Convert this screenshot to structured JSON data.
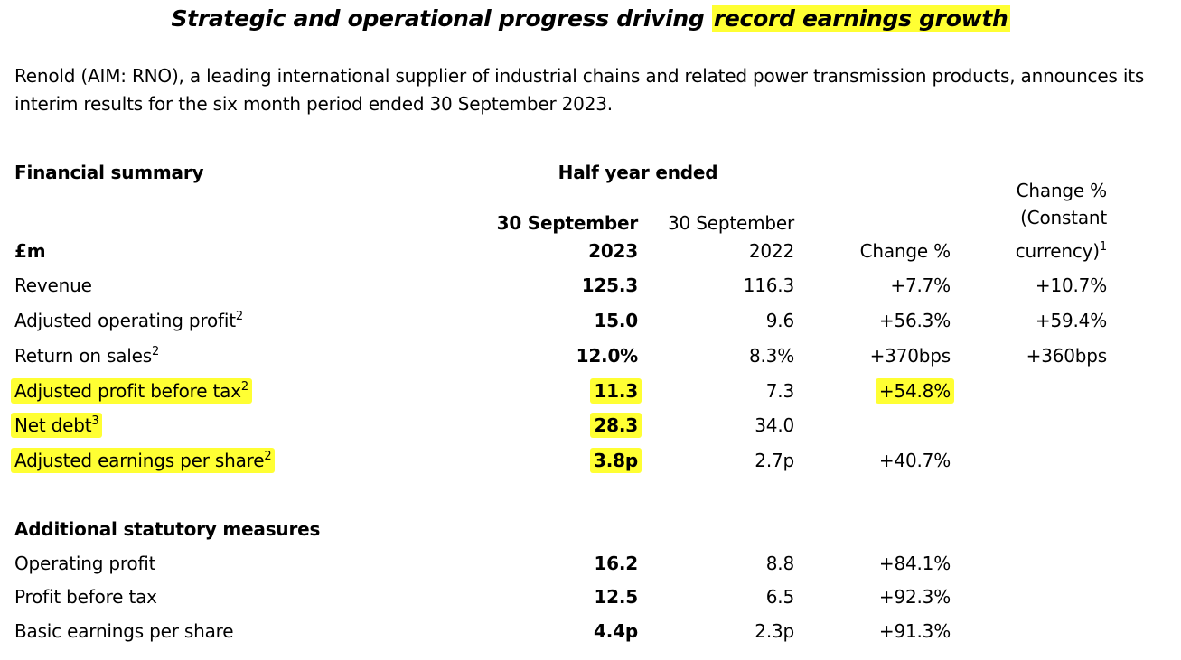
{
  "headline": {
    "part1": "Strategic and operational progress driving ",
    "part2_highlighted": "record earnings growth"
  },
  "intro": "Renold (AIM: RNO), a leading international supplier of industrial chains and related power transmission products, announces its interim results for the six month period ended 30 September 2023.",
  "table": {
    "section_title": "Financial summary",
    "period_header": "Half year ended",
    "unit_label": "£m",
    "col_current_line1": "30 September",
    "col_current_line2": "2023",
    "col_prior_line1": "30 September",
    "col_prior_line2": "2022",
    "col_change": "Change %",
    "col_cc_line1": "Change %",
    "col_cc_line2": "(Constant",
    "col_cc_line3": "currency)",
    "col_cc_sup": "1",
    "rows": [
      {
        "label": "Revenue",
        "sup": "",
        "current": "125.3",
        "prior": "116.3",
        "change": "+7.7%",
        "cc": "+10.7%"
      },
      {
        "label": "Adjusted operating profit",
        "sup": "2",
        "current": "15.0",
        "prior": "9.6",
        "change": "+56.3%",
        "cc": "+59.4%"
      },
      {
        "label": "Return on sales",
        "sup": "2",
        "current": "12.0%",
        "prior": "8.3%",
        "change": "+370bps",
        "cc": "+360bps"
      },
      {
        "label": "Adjusted profit before tax",
        "sup": "2",
        "current": "11.3",
        "prior": "7.3",
        "change": "+54.8%",
        "cc": ""
      },
      {
        "label": "Net debt",
        "sup": "3",
        "current": "28.3",
        "prior": "34.0",
        "change": "",
        "cc": ""
      },
      {
        "label": "Adjusted earnings per share",
        "sup": "2",
        "current": "3.8p",
        "prior": "2.7p",
        "change": "+40.7%",
        "cc": ""
      }
    ],
    "statutory_title": "Additional statutory measures",
    "statutory_rows": [
      {
        "label": "Operating profit",
        "current": "16.2",
        "prior": "8.8",
        "change": "+84.1%"
      },
      {
        "label": "Profit before tax",
        "current": "12.5",
        "prior": "6.5",
        "change": "+92.3%"
      },
      {
        "label": "Basic earnings per share",
        "current": "4.4p",
        "prior": "2.3p",
        "change": "+91.3%"
      }
    ]
  },
  "colors": {
    "highlight": "#ffff33",
    "text": "#000000"
  }
}
